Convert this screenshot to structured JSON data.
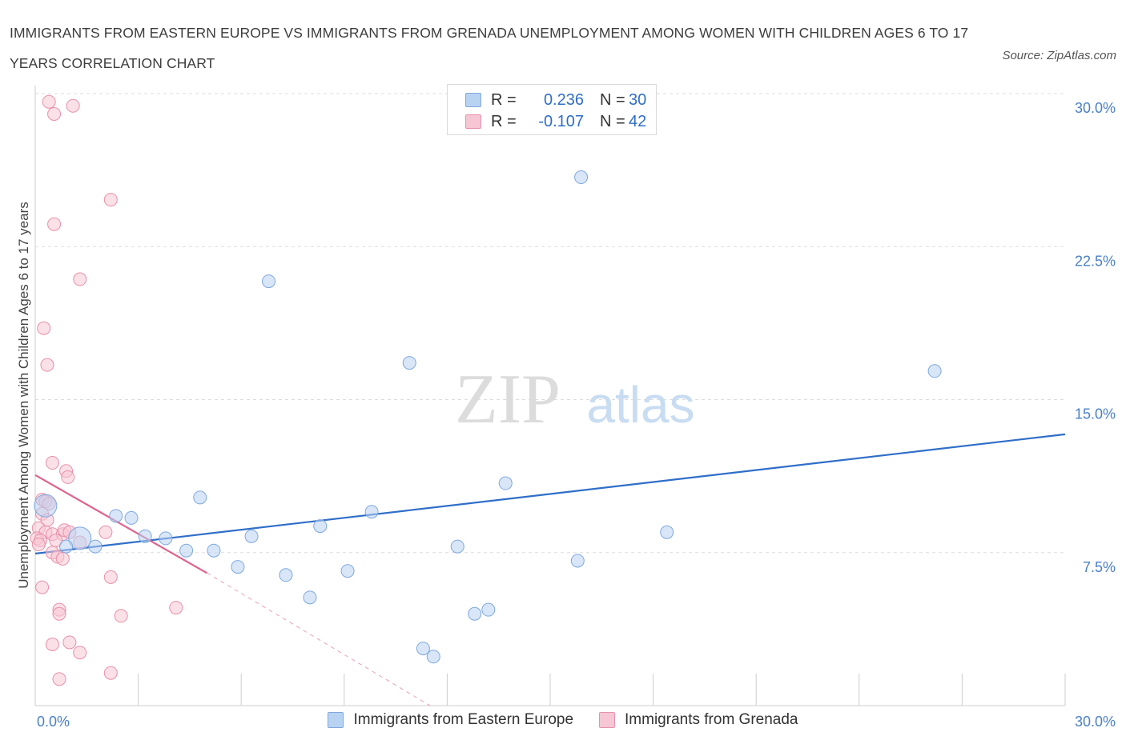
{
  "header": {
    "title": "IMMIGRANTS FROM EASTERN EUROPE VS IMMIGRANTS FROM GRENADA UNEMPLOYMENT AMONG WOMEN WITH CHILDREN AGES 6 TO 17 YEARS CORRELATION CHART",
    "source": "Source: ZipAtlas.com"
  },
  "watermark": {
    "zip": "ZIP",
    "atlas": "atlas"
  },
  "legend": {
    "series1": {
      "r_label": "R =",
      "r_value": "0.236",
      "n_label": "N =",
      "n_value": "30"
    },
    "series2": {
      "r_label": "R =",
      "r_value": "-0.107",
      "n_label": "N =",
      "n_value": "42"
    }
  },
  "bottom_legend": {
    "series1": "Immigrants from Eastern Europe",
    "series2": "Immigrants from Grenada"
  },
  "colors": {
    "blue_fill": "#b8d2f2",
    "blue_stroke": "#7fa8de",
    "blue_line": "#2f6ec9",
    "pink_fill": "#f6c6d4",
    "pink_stroke": "#e890ab",
    "pink_line": "#e0628c",
    "axis_label": "#4a80c8",
    "grid": "#dddddd"
  },
  "chart_data": {
    "type": "scatter",
    "title": "IMMIGRANTS FROM EASTERN EUROPE VS IMMIGRANTS FROM GRENADA UNEMPLOYMENT AMONG WOMEN WITH CHILDREN AGES 6 TO 17 YEARS CORRELATION CHART",
    "xlabel": "",
    "ylabel": "Unemployment Among Women with Children Ages 6 to 17 years",
    "xlim": [
      0,
      30
    ],
    "ylim": [
      0,
      30
    ],
    "x_tick_labels": [
      "0.0%",
      "30.0%"
    ],
    "y_tick_labels": [
      "7.5%",
      "15.0%",
      "22.5%",
      "30.0%"
    ],
    "y_ticks": [
      7.5,
      15.0,
      22.5,
      30.0
    ],
    "grid": true,
    "legend_position": "top-center",
    "series": [
      {
        "name": "Immigrants from Eastern Europe",
        "color": "#7fa8de",
        "points": [
          [
            0.3,
            9.8,
            "large"
          ],
          [
            1.3,
            8.2,
            "large"
          ],
          [
            1.75,
            7.8
          ],
          [
            2.35,
            9.3
          ],
          [
            2.8,
            9.2
          ],
          [
            3.2,
            8.3
          ],
          [
            3.8,
            8.2
          ],
          [
            4.4,
            7.6
          ],
          [
            4.8,
            10.2
          ],
          [
            5.2,
            7.6
          ],
          [
            5.9,
            6.8
          ],
          [
            6.3,
            8.3
          ],
          [
            6.8,
            20.8
          ],
          [
            7.3,
            6.4
          ],
          [
            8.0,
            5.3
          ],
          [
            8.3,
            8.8
          ],
          [
            9.1,
            6.6
          ],
          [
            9.8,
            9.5
          ],
          [
            10.9,
            16.8
          ],
          [
            11.3,
            2.8
          ],
          [
            11.6,
            2.4
          ],
          [
            12.3,
            7.8
          ],
          [
            12.8,
            4.5
          ],
          [
            13.2,
            4.7
          ],
          [
            13.7,
            10.9
          ],
          [
            15.8,
            7.1
          ],
          [
            15.9,
            25.9
          ],
          [
            18.4,
            8.5
          ],
          [
            26.2,
            16.4
          ],
          [
            0.9,
            7.8
          ]
        ],
        "trend": {
          "x": [
            0,
            30
          ],
          "y": [
            7.45,
            13.3
          ]
        }
      },
      {
        "name": "Immigrants from Grenada",
        "color": "#e890ab",
        "points": [
          [
            0.4,
            29.6
          ],
          [
            0.55,
            29.0
          ],
          [
            1.1,
            29.4
          ],
          [
            2.2,
            24.8
          ],
          [
            0.55,
            23.6
          ],
          [
            1.3,
            20.9
          ],
          [
            0.25,
            18.5
          ],
          [
            0.35,
            16.7
          ],
          [
            0.5,
            11.9
          ],
          [
            0.9,
            11.5
          ],
          [
            0.95,
            11.2
          ],
          [
            0.2,
            10.1
          ],
          [
            0.3,
            10.0
          ],
          [
            0.4,
            9.9
          ],
          [
            0.2,
            9.4
          ],
          [
            0.35,
            9.1
          ],
          [
            0.1,
            8.7
          ],
          [
            0.3,
            8.5
          ],
          [
            0.5,
            8.4
          ],
          [
            0.8,
            8.4
          ],
          [
            0.85,
            8.6
          ],
          [
            1.0,
            8.5
          ],
          [
            2.05,
            8.5
          ],
          [
            0.05,
            8.2
          ],
          [
            0.15,
            8.1
          ],
          [
            0.6,
            8.1
          ],
          [
            1.3,
            8.0
          ],
          [
            0.1,
            7.9
          ],
          [
            0.5,
            7.5
          ],
          [
            0.65,
            7.3
          ],
          [
            0.8,
            7.2
          ],
          [
            2.2,
            6.3
          ],
          [
            0.2,
            5.8
          ],
          [
            4.1,
            4.8
          ],
          [
            0.7,
            4.7
          ],
          [
            0.7,
            4.5
          ],
          [
            2.5,
            4.4
          ],
          [
            1.0,
            3.1
          ],
          [
            0.5,
            3.0
          ],
          [
            1.3,
            2.6
          ],
          [
            2.2,
            1.6
          ],
          [
            0.7,
            1.3
          ]
        ],
        "trend": {
          "x": [
            0,
            5.0
          ],
          "y": [
            11.3,
            6.5
          ]
        },
        "trend_extension": {
          "x": [
            5.0,
            11.5
          ],
          "y": [
            6.5,
            0
          ]
        }
      }
    ]
  }
}
